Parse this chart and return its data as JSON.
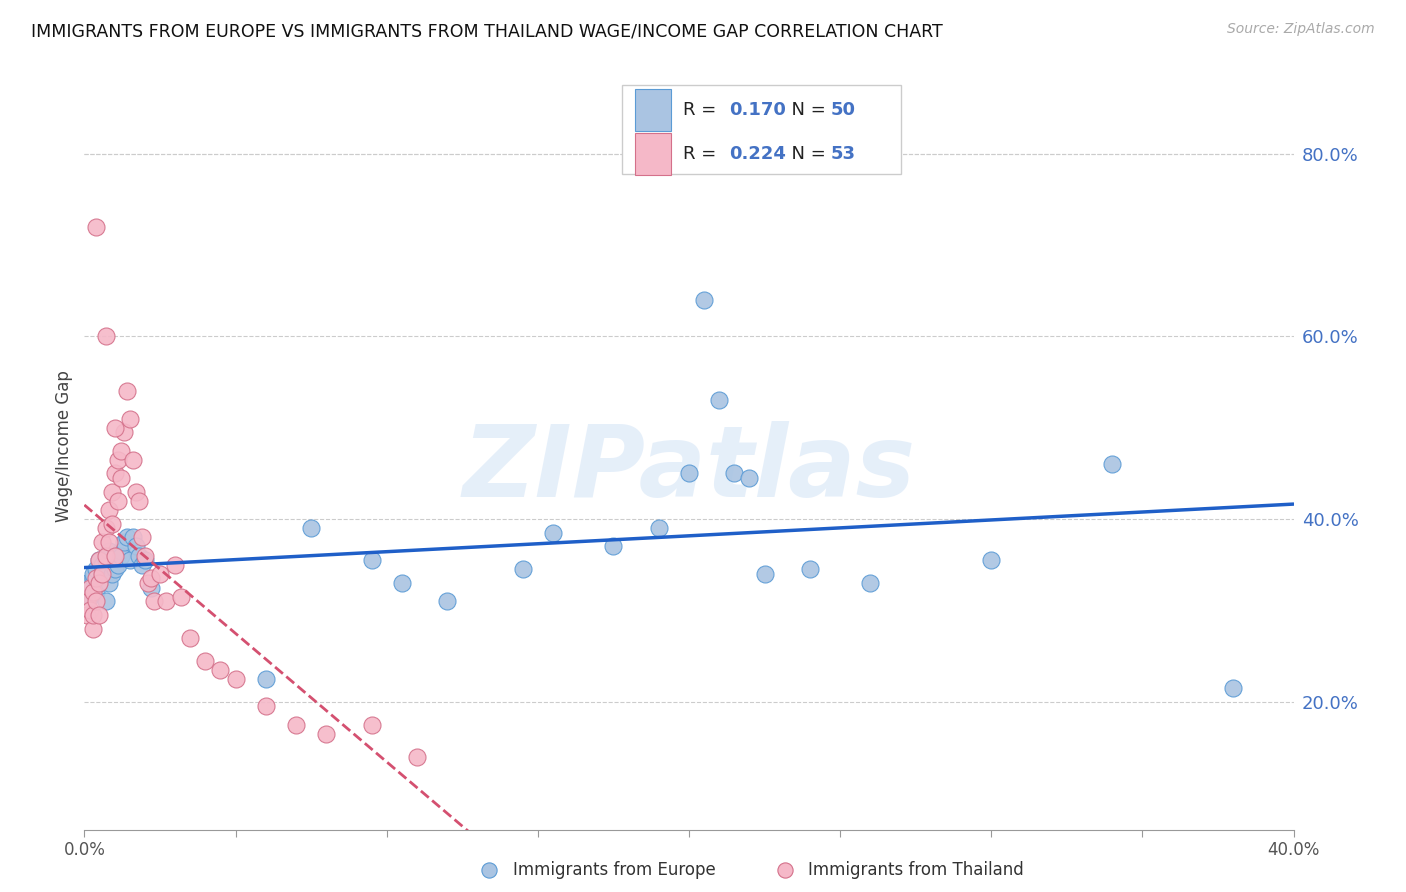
{
  "title": "IMMIGRANTS FROM EUROPE VS IMMIGRANTS FROM THAILAND WAGE/INCOME GAP CORRELATION CHART",
  "source": "Source: ZipAtlas.com",
  "ylabel": "Wage/Income Gap",
  "xlim": [
    0.0,
    0.4
  ],
  "ylim": [
    0.06,
    0.9
  ],
  "yticks_right": [
    0.2,
    0.4,
    0.6,
    0.8
  ],
  "europe_color": "#aac4e2",
  "europe_edge": "#5b9bd5",
  "thailand_color": "#f5b8c8",
  "thailand_edge": "#d4708a",
  "trendline_europe_color": "#1f5fc8",
  "trendline_thailand_color": "#d45070",
  "watermark": "ZIPatlas",
  "legend_text_color": "#4472c4",
  "europe_x": [
    0.001,
    0.002,
    0.002,
    0.003,
    0.003,
    0.004,
    0.004,
    0.005,
    0.005,
    0.006,
    0.006,
    0.007,
    0.007,
    0.008,
    0.008,
    0.009,
    0.01,
    0.01,
    0.011,
    0.012,
    0.012,
    0.013,
    0.014,
    0.015,
    0.016,
    0.017,
    0.018,
    0.019,
    0.02,
    0.022,
    0.06,
    0.075,
    0.095,
    0.105,
    0.12,
    0.145,
    0.155,
    0.175,
    0.19,
    0.2,
    0.205,
    0.21,
    0.215,
    0.22,
    0.225,
    0.24,
    0.26,
    0.3,
    0.34,
    0.38
  ],
  "europe_y": [
    0.33,
    0.325,
    0.315,
    0.335,
    0.34,
    0.345,
    0.32,
    0.355,
    0.33,
    0.34,
    0.35,
    0.355,
    0.31,
    0.365,
    0.33,
    0.34,
    0.36,
    0.345,
    0.35,
    0.365,
    0.36,
    0.375,
    0.38,
    0.355,
    0.38,
    0.37,
    0.36,
    0.35,
    0.355,
    0.325,
    0.225,
    0.39,
    0.355,
    0.33,
    0.31,
    0.345,
    0.385,
    0.37,
    0.39,
    0.45,
    0.64,
    0.53,
    0.45,
    0.445,
    0.34,
    0.345,
    0.33,
    0.355,
    0.46,
    0.215
  ],
  "thailand_x": [
    0.001,
    0.001,
    0.002,
    0.002,
    0.003,
    0.003,
    0.003,
    0.004,
    0.004,
    0.005,
    0.005,
    0.005,
    0.006,
    0.006,
    0.007,
    0.007,
    0.008,
    0.008,
    0.009,
    0.009,
    0.01,
    0.01,
    0.011,
    0.011,
    0.012,
    0.012,
    0.013,
    0.014,
    0.015,
    0.016,
    0.017,
    0.018,
    0.019,
    0.02,
    0.021,
    0.022,
    0.023,
    0.025,
    0.027,
    0.03,
    0.032,
    0.035,
    0.04,
    0.045,
    0.05,
    0.06,
    0.07,
    0.08,
    0.095,
    0.11,
    0.01,
    0.007,
    0.004
  ],
  "thailand_y": [
    0.31,
    0.295,
    0.325,
    0.3,
    0.32,
    0.28,
    0.295,
    0.335,
    0.31,
    0.355,
    0.33,
    0.295,
    0.375,
    0.34,
    0.39,
    0.36,
    0.41,
    0.375,
    0.43,
    0.395,
    0.45,
    0.36,
    0.465,
    0.42,
    0.475,
    0.445,
    0.495,
    0.54,
    0.51,
    0.465,
    0.43,
    0.42,
    0.38,
    0.36,
    0.33,
    0.335,
    0.31,
    0.34,
    0.31,
    0.35,
    0.315,
    0.27,
    0.245,
    0.235,
    0.225,
    0.195,
    0.175,
    0.165,
    0.175,
    0.14,
    0.5,
    0.6,
    0.72
  ]
}
